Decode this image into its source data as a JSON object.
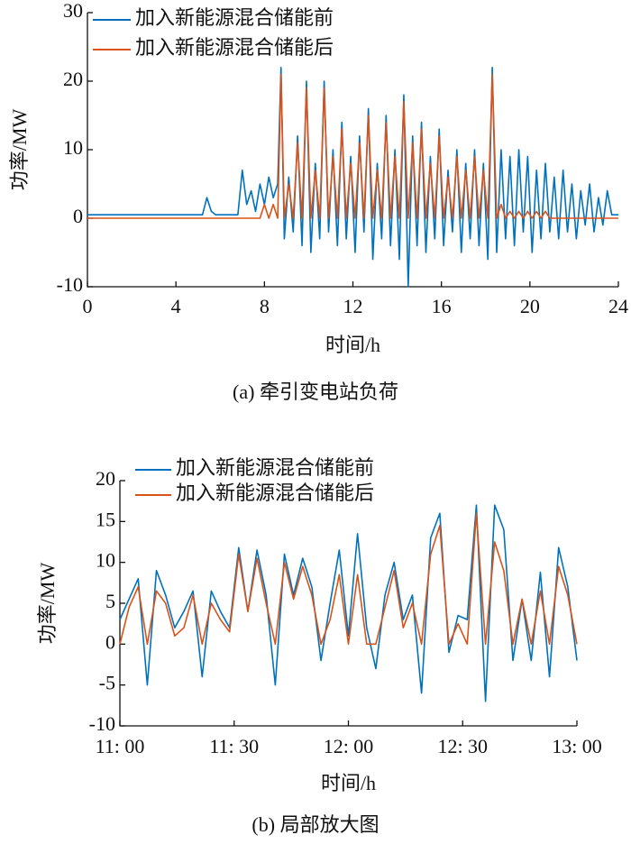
{
  "chart_data": [
    {
      "type": "line",
      "caption": "(a) 牵引变电站负荷",
      "xlabel": "时间/h",
      "ylabel": "功率/MW",
      "xlim": [
        0,
        24
      ],
      "xticks": [
        0,
        4,
        8,
        12,
        16,
        20,
        24
      ],
      "ylim": [
        -10,
        30
      ],
      "yticks": [
        -10,
        0,
        10,
        20,
        30
      ],
      "legend": "upper left",
      "x": [
        0,
        4,
        5.2,
        5.4,
        5.6,
        5.8,
        6.8,
        7.0,
        7.2,
        7.4,
        7.6,
        7.8,
        8.0,
        8.2,
        8.4,
        8.6,
        8.75,
        8.9,
        9.1,
        9.3,
        9.5,
        9.7,
        9.9,
        10.1,
        10.3,
        10.5,
        10.7,
        10.9,
        11.1,
        11.3,
        11.5,
        11.7,
        11.9,
        12.1,
        12.3,
        12.5,
        12.7,
        12.9,
        13.1,
        13.3,
        13.5,
        13.7,
        13.9,
        14.1,
        14.3,
        14.5,
        14.7,
        14.9,
        15.1,
        15.3,
        15.5,
        15.7,
        15.9,
        16.1,
        16.3,
        16.5,
        16.7,
        16.9,
        17.1,
        17.3,
        17.5,
        17.7,
        17.9,
        18.1,
        18.3,
        18.5,
        18.7,
        18.9,
        19.1,
        19.3,
        19.5,
        19.7,
        19.9,
        20.1,
        20.3,
        20.5,
        20.7,
        20.9,
        21.1,
        21.3,
        21.5,
        21.7,
        21.9,
        22.1,
        22.3,
        22.5,
        22.7,
        22.9,
        23.1,
        23.3,
        23.5,
        23.7,
        24
      ],
      "series": [
        {
          "name": "加入新能源混合储能前",
          "color": "#0072BD",
          "values": [
            0.5,
            0.5,
            0.5,
            3,
            1,
            0.5,
            0.5,
            7,
            2,
            4,
            1,
            5,
            2,
            6,
            3,
            5,
            22,
            -3,
            6,
            -2,
            12,
            -4,
            20,
            -5,
            8,
            -3,
            20,
            -2,
            10,
            -4,
            14,
            -3,
            9,
            -5,
            12,
            -2,
            16,
            -6,
            8,
            -3,
            15,
            -4,
            10,
            -6,
            18,
            -10,
            12,
            -4,
            14,
            -5,
            9,
            -3,
            13,
            -4,
            7,
            -2,
            10,
            -5,
            8,
            -3,
            10,
            -4,
            8,
            -6,
            22,
            -5,
            10,
            -3,
            9,
            -4,
            10,
            -2,
            9,
            -5,
            7,
            -3,
            8,
            -2,
            6,
            -3,
            7,
            -2,
            5,
            -3,
            4,
            -1,
            5,
            -2,
            3,
            -1,
            4,
            0.5,
            0.5
          ]
        },
        {
          "name": "加入新能源混合储能后",
          "color": "#D95319",
          "values": [
            0,
            0,
            0,
            0,
            0,
            0,
            0,
            0,
            0,
            0,
            0,
            0,
            2,
            0,
            2,
            0,
            21,
            0,
            5,
            0,
            11,
            0,
            19,
            0,
            7,
            0,
            19,
            0,
            9,
            0,
            13,
            0,
            8,
            0,
            11,
            0,
            15,
            0,
            7,
            0,
            14,
            0,
            9,
            0,
            17,
            0,
            11,
            0,
            13,
            0,
            8,
            0,
            12,
            0,
            6,
            0,
            9,
            0,
            7,
            0,
            9,
            0,
            7,
            0,
            21,
            0,
            2,
            0,
            1,
            0,
            1,
            0,
            1,
            0,
            1,
            0,
            1,
            0,
            0,
            0,
            0,
            0,
            0,
            0,
            0,
            0,
            0,
            0,
            0,
            0,
            0,
            0,
            0
          ]
        }
      ]
    },
    {
      "type": "line",
      "caption": "(b) 局部放大图",
      "xlabel": "时间/h",
      "ylabel": "功率/MW",
      "xlim": [
        11,
        13
      ],
      "xticks": [
        {
          "value": 11,
          "label": "11: 00"
        },
        {
          "value": 11.5,
          "label": "11: 30"
        },
        {
          "value": 12,
          "label": "12: 00"
        },
        {
          "value": 12.5,
          "label": "12: 30"
        },
        {
          "value": 13,
          "label": "13: 00"
        }
      ],
      "ylim": [
        -10,
        20
      ],
      "yticks": [
        -10,
        -5,
        0,
        5,
        10,
        15,
        20
      ],
      "legend": "upper left",
      "x": [
        11,
        11.04,
        11.08,
        11.12,
        11.16,
        11.2,
        11.24,
        11.28,
        11.32,
        11.36,
        11.4,
        11.44,
        11.48,
        11.52,
        11.56,
        11.6,
        11.64,
        11.68,
        11.72,
        11.76,
        11.8,
        11.84,
        11.88,
        11.92,
        11.96,
        12,
        12.04,
        12.08,
        12.12,
        12.16,
        12.2,
        12.24,
        12.28,
        12.32,
        12.36,
        12.4,
        12.44,
        12.48,
        12.52,
        12.56,
        12.6,
        12.64,
        12.68,
        12.72,
        12.76,
        12.8,
        12.84,
        12.88,
        12.92,
        12.96,
        13
      ],
      "series": [
        {
          "name": "加入新能源混合储能前",
          "color": "#0072BD",
          "values": [
            3,
            5.5,
            8,
            -5,
            9,
            6,
            2,
            4,
            6.5,
            -4,
            6.5,
            4,
            2,
            11.8,
            4,
            11.5,
            6,
            -5,
            11,
            6,
            10.5,
            7,
            -2,
            5,
            11.5,
            1,
            13.5,
            2,
            -3,
            6,
            10,
            3,
            6,
            -6,
            13,
            16,
            -1,
            3.5,
            3,
            17,
            -7,
            17,
            14,
            -2,
            5.5,
            -2,
            8.8,
            -4,
            11.8,
            7,
            -2
          ]
        },
        {
          "name": "加入新能源混合储能后",
          "color": "#D95319",
          "values": [
            0,
            4.5,
            7,
            0,
            6.5,
            5,
            1,
            2,
            6,
            0,
            5,
            3,
            1.5,
            11,
            4,
            10.5,
            5,
            0,
            10,
            5.5,
            9.5,
            6,
            0,
            3,
            8.5,
            0,
            8.5,
            0,
            0,
            4.5,
            9,
            2,
            5,
            0,
            11,
            14.5,
            0,
            2.5,
            0,
            16,
            0,
            12.5,
            9,
            0,
            5.5,
            0,
            6.5,
            0,
            9.5,
            6,
            0
          ]
        }
      ]
    }
  ]
}
